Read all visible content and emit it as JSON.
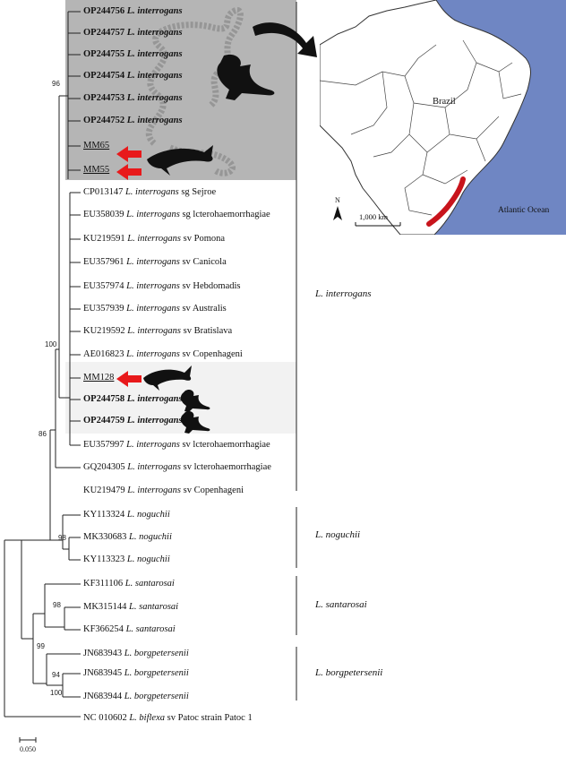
{
  "leaves": [
    {
      "acc": "OP244756",
      "sp": "L. interrogans",
      "rest": "",
      "style": "hl"
    },
    {
      "acc": "OP244757",
      "sp": "L. interrogans",
      "rest": "",
      "style": "hl"
    },
    {
      "acc": "OP244755",
      "sp": "L. interrogans",
      "rest": "",
      "style": "hl"
    },
    {
      "acc": "OP244754",
      "sp": "L. interrogans",
      "rest": "",
      "style": "hl"
    },
    {
      "acc": "OP244753",
      "sp": "L. interrogans",
      "rest": "",
      "style": "hl"
    },
    {
      "acc": "OP244752",
      "sp": "L. interrogans",
      "rest": "",
      "style": "hl"
    },
    {
      "acc": "MM65",
      "sp": "",
      "rest": "",
      "style": "ul"
    },
    {
      "acc": "MM55",
      "sp": "",
      "rest": "",
      "style": "ul"
    },
    {
      "acc": "CP013147",
      "sp": "L. interrogans",
      "rest": "sg Sejroe",
      "style": ""
    },
    {
      "acc": "EU358039",
      "sp": "L. interrogans",
      "rest": "sg lcterohaemorrhagiae",
      "style": ""
    },
    {
      "acc": "KU219591",
      "sp": "L. interrogans",
      "rest": "sv Pomona",
      "style": ""
    },
    {
      "acc": "EU357961",
      "sp": "L. interrogans",
      "rest": "sv Canicola",
      "style": ""
    },
    {
      "acc": "EU357974",
      "sp": "L. interrogans",
      "rest": "sv Hebdomadis",
      "style": ""
    },
    {
      "acc": "EU357939",
      "sp": "L. interrogans",
      "rest": "sv Australis",
      "style": ""
    },
    {
      "acc": "KU219592",
      "sp": "L. interrogans",
      "rest": "sv Bratislava",
      "style": ""
    },
    {
      "acc": "AE016823",
      "sp": "L. interrogans",
      "rest": "sv Copenhageni",
      "style": ""
    },
    {
      "acc": "MM128",
      "sp": "",
      "rest": "",
      "style": "ul"
    },
    {
      "acc": "OP244758",
      "sp": "L. interrogans",
      "rest": "",
      "style": "hl"
    },
    {
      "acc": "OP244759",
      "sp": "L. interrogans",
      "rest": "",
      "style": "hl"
    },
    {
      "acc": "EU357997",
      "sp": "L. interrogans",
      "rest": "sv lcterohaemorrhagiae",
      "style": ""
    },
    {
      "acc": "GQ204305",
      "sp": "L. interrogans",
      "rest": "sv lcterohaemorrhagiae",
      "style": ""
    },
    {
      "acc": "KU219479",
      "sp": "L. interrogans",
      "rest": "sv Copenhageni",
      "style": ""
    },
    {
      "acc": "KY113324",
      "sp": "L. noguchii",
      "rest": "",
      "style": ""
    },
    {
      "acc": "MK330683",
      "sp": "L. noguchii",
      "rest": "",
      "style": ""
    },
    {
      "acc": "KY113323",
      "sp": "L. noguchii",
      "rest": "",
      "style": ""
    },
    {
      "acc": "KF311106",
      "sp": "L. santarosai",
      "rest": "",
      "style": ""
    },
    {
      "acc": "MK315144",
      "sp": "L. santarosai",
      "rest": "",
      "style": ""
    },
    {
      "acc": "KF366254",
      "sp": "L. santarosai",
      "rest": "",
      "style": ""
    },
    {
      "acc": "JN683943",
      "sp": "L. borgpetersenii",
      "rest": "",
      "style": ""
    },
    {
      "acc": "JN683945",
      "sp": "L. borgpetersenii",
      "rest": "",
      "style": ""
    },
    {
      "acc": "JN683944",
      "sp": "L. borgpetersenii",
      "rest": "",
      "style": ""
    },
    {
      "acc": "NC 010602",
      "sp": "L. biflexa",
      "rest": "sv Patoc strain Patoc 1",
      "style": ""
    }
  ],
  "bootstrap": {
    "b96": "96",
    "b100a": "100",
    "b86": "86",
    "b98a": "98",
    "b98b": "98",
    "b99": "99",
    "b94": "94",
    "b100b": "100"
  },
  "clades": {
    "interrogans": "L. interrogans",
    "noguchii": "L. noguchii",
    "santarosai": "L. santarosai",
    "borgpetersenii": "L. borgpetersenii"
  },
  "map": {
    "country": "Brazil",
    "ocean": "Atlantic Ocean",
    "north": "N",
    "scale": "1,000 km"
  },
  "scale_bar": "0.050",
  "colors": {
    "highlight_box": "#b3b3b3",
    "light_box": "#f3f3f3",
    "ocean": "#6f86c3",
    "arrow_red": "#e8191b",
    "coast_red": "#c8141c"
  },
  "icons": [
    "sea-lion-icon",
    "dolphin-icon",
    "red-arrow-icon",
    "curved-arrow-icon",
    "north-arrow-icon"
  ]
}
